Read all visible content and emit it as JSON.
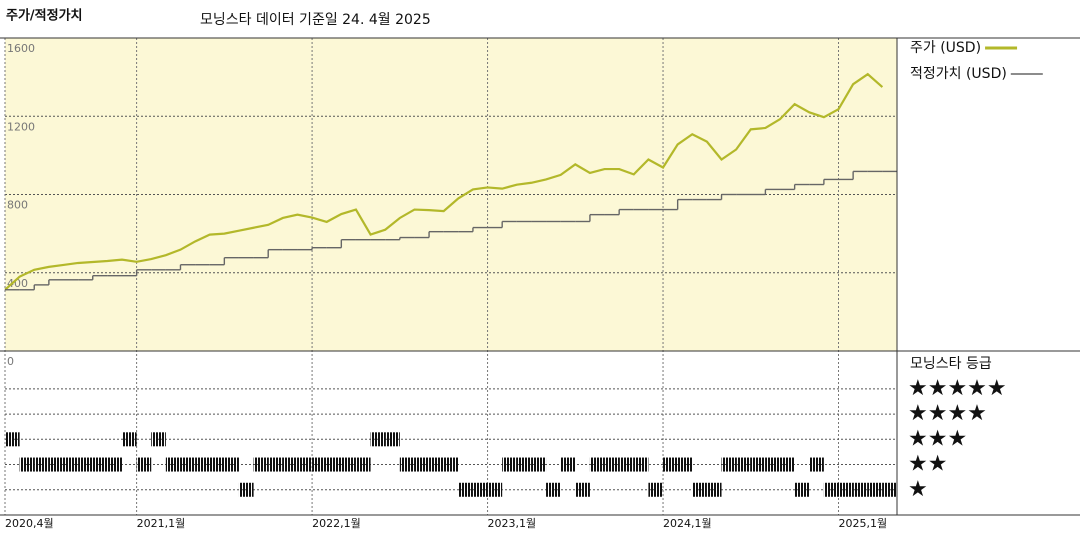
{
  "title": "주가/적정가치",
  "subtitle": "모닝스타 데이터 기준일 24. 4월 2025",
  "chart_data": [
    {
      "type": "line",
      "x": [
        "2020-04",
        "2020-05",
        "2020-06",
        "2020-07",
        "2020-08",
        "2020-09",
        "2020-10",
        "2020-11",
        "2020-12",
        "2021-01",
        "2021-02",
        "2021-03",
        "2021-04",
        "2021-05",
        "2021-06",
        "2021-07",
        "2021-08",
        "2021-09",
        "2021-10",
        "2021-11",
        "2021-12",
        "2022-01",
        "2022-02",
        "2022-03",
        "2022-04",
        "2022-05",
        "2022-06",
        "2022-07",
        "2022-08",
        "2022-09",
        "2022-10",
        "2022-11",
        "2022-12",
        "2023-01",
        "2023-02",
        "2023-03",
        "2023-04",
        "2023-05",
        "2023-06",
        "2023-07",
        "2023-08",
        "2023-09",
        "2023-10",
        "2023-11",
        "2023-12",
        "2024-01",
        "2024-02",
        "2024-03",
        "2024-04",
        "2024-05",
        "2024-06",
        "2024-07",
        "2024-08",
        "2024-09",
        "2024-10",
        "2024-11",
        "2024-12",
        "2025-01",
        "2025-02",
        "2025-03",
        "2025-04"
      ],
      "series": [
        {
          "name": "주가 (USD)",
          "color": "#b3b82a",
          "style": "line",
          "values": [
            313,
            380,
            415,
            430,
            440,
            450,
            455,
            460,
            467,
            456,
            470,
            490,
            518,
            560,
            595,
            600,
            615,
            630,
            645,
            680,
            697,
            682,
            660,
            700,
            723,
            595,
            620,
            680,
            723,
            720,
            715,
            780,
            826,
            836,
            830,
            850,
            860,
            877,
            900,
            954,
            910,
            930,
            930,
            903,
            979,
            938,
            1056,
            1108,
            1070,
            979,
            1030,
            1133,
            1140,
            1185,
            1262,
            1220,
            1195,
            1236,
            1364,
            1415,
            1349
          ]
        },
        {
          "name": "적정가치 (USD)",
          "color": "#666666",
          "style": "step",
          "values": [
            313,
            313,
            338,
            364,
            364,
            364,
            385,
            385,
            385,
            415,
            415,
            415,
            441,
            441,
            441,
            477,
            477,
            477,
            518,
            518,
            518,
            528,
            528,
            569,
            569,
            569,
            569,
            580,
            580,
            610,
            610,
            610,
            631,
            631,
            662,
            662,
            662,
            662,
            662,
            662,
            697,
            697,
            723,
            723,
            723,
            723,
            774,
            774,
            774,
            800,
            800,
            800,
            826,
            826,
            851,
            851,
            877,
            877,
            918,
            918,
            918
          ]
        }
      ],
      "xlim": [
        "2020-04",
        "2025-05"
      ],
      "xticks": [
        {
          "value": "2020-04",
          "label": "2020,4월"
        },
        {
          "value": "2021-01",
          "label": "2021,1월"
        },
        {
          "value": "2022-01",
          "label": "2022,1월"
        },
        {
          "value": "2023-01",
          "label": "2023,1월"
        },
        {
          "value": "2024-01",
          "label": "2024,1월"
        },
        {
          "value": "2025-01",
          "label": "2025,1월"
        }
      ],
      "ylim": [
        0,
        1600
      ],
      "yticks": [
        0,
        400,
        800,
        1200,
        1600
      ],
      "grid": true
    },
    {
      "type": "rating",
      "title": "모닝스타 등급",
      "x": [
        "2020-04",
        "2020-05",
        "2020-06",
        "2020-07",
        "2020-08",
        "2020-09",
        "2020-10",
        "2020-11",
        "2020-12",
        "2021-01",
        "2021-02",
        "2021-03",
        "2021-04",
        "2021-05",
        "2021-06",
        "2021-07",
        "2021-08",
        "2021-09",
        "2021-10",
        "2021-11",
        "2021-12",
        "2022-01",
        "2022-02",
        "2022-03",
        "2022-04",
        "2022-05",
        "2022-06",
        "2022-07",
        "2022-08",
        "2022-09",
        "2022-10",
        "2022-11",
        "2022-12",
        "2023-01",
        "2023-02",
        "2023-03",
        "2023-04",
        "2023-05",
        "2023-06",
        "2023-07",
        "2023-08",
        "2023-09",
        "2023-10",
        "2023-11",
        "2023-12",
        "2024-01",
        "2024-02",
        "2024-03",
        "2024-04",
        "2024-05",
        "2024-06",
        "2024-07",
        "2024-08",
        "2024-09",
        "2024-10",
        "2024-11",
        "2024-12",
        "2025-01",
        "2025-02",
        "2025-03",
        "2025-04"
      ],
      "values": [
        3,
        2,
        2,
        2,
        2,
        2,
        2,
        2,
        3,
        2,
        3,
        2,
        2,
        2,
        2,
        2,
        1,
        2,
        2,
        2,
        2,
        2,
        2,
        2,
        2,
        3,
        3,
        2,
        2,
        2,
        2,
        1,
        1,
        1,
        2,
        2,
        2,
        1,
        2,
        1,
        2,
        2,
        2,
        2,
        1,
        2,
        2,
        1,
        1,
        2,
        2,
        2,
        2,
        2,
        1,
        2,
        1,
        1,
        1,
        1,
        1
      ],
      "color": "#111111",
      "ylim": [
        0,
        6.5
      ],
      "yticks": [
        {
          "value": 5,
          "label": "★★★★★"
        },
        {
          "value": 4,
          "label": "★★★★"
        },
        {
          "value": 3,
          "label": "★★★"
        },
        {
          "value": 2,
          "label": "★★"
        },
        {
          "value": 1,
          "label": "★"
        }
      ]
    }
  ]
}
